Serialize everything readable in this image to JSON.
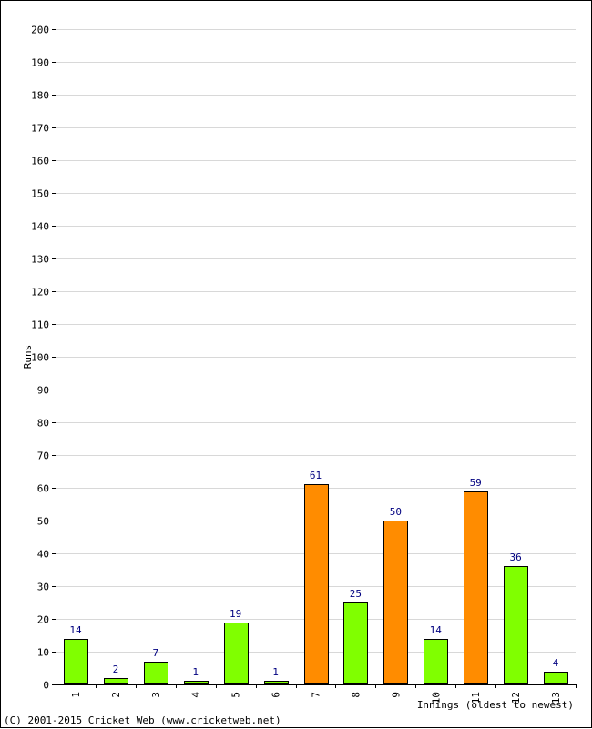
{
  "chart_data": {
    "type": "bar",
    "categories": [
      "1",
      "2",
      "3",
      "4",
      "5",
      "6",
      "7",
      "8",
      "9",
      "10",
      "11",
      "12",
      "13"
    ],
    "values": [
      14,
      2,
      7,
      1,
      19,
      1,
      61,
      25,
      50,
      14,
      59,
      36,
      4
    ],
    "ylim": [
      0,
      200
    ],
    "ytick_step": 10,
    "ylabel": "Runs",
    "xlabel": "Innings (oldest to newest)",
    "grid": true,
    "colors": {
      "normal": "#80ff00",
      "fifty": "#ff8c00",
      "label": "#000080",
      "grid": "#d8d8d8"
    }
  },
  "footer": "(C) 2001-2015 Cricket Web (www.cricketweb.net)"
}
